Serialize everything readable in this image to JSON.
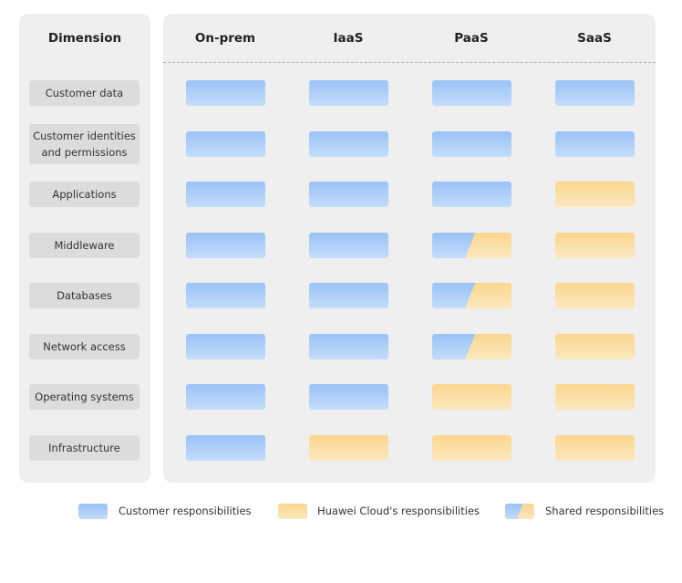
{
  "header": {
    "dimension_label": "Dimension",
    "columns": [
      "On-prem",
      "IaaS",
      "PaaS",
      "SaaS"
    ]
  },
  "dimensions": [
    "Customer data",
    "Customer identities\nand permissions",
    "Applications",
    "Middleware",
    "Databases",
    "Network access",
    "Operating systems",
    "Infrastructure"
  ],
  "matrix": [
    [
      "customer",
      "customer",
      "customer",
      "customer"
    ],
    [
      "customer",
      "customer",
      "customer",
      "customer"
    ],
    [
      "customer",
      "customer",
      "customer",
      "cloud"
    ],
    [
      "customer",
      "customer",
      "shared",
      "cloud"
    ],
    [
      "customer",
      "customer",
      "shared",
      "cloud"
    ],
    [
      "customer",
      "customer",
      "shared",
      "cloud"
    ],
    [
      "customer",
      "customer",
      "cloud",
      "cloud"
    ],
    [
      "customer",
      "cloud",
      "cloud",
      "cloud"
    ]
  ],
  "legend": {
    "customer": "Customer responsibilities",
    "cloud": "Huawei Cloud's responsibilities",
    "shared": "Shared responsibilities"
  },
  "colors": {
    "customer": "#9ac3f7",
    "cloud": "#fbd68e",
    "panel": "#efefef"
  }
}
